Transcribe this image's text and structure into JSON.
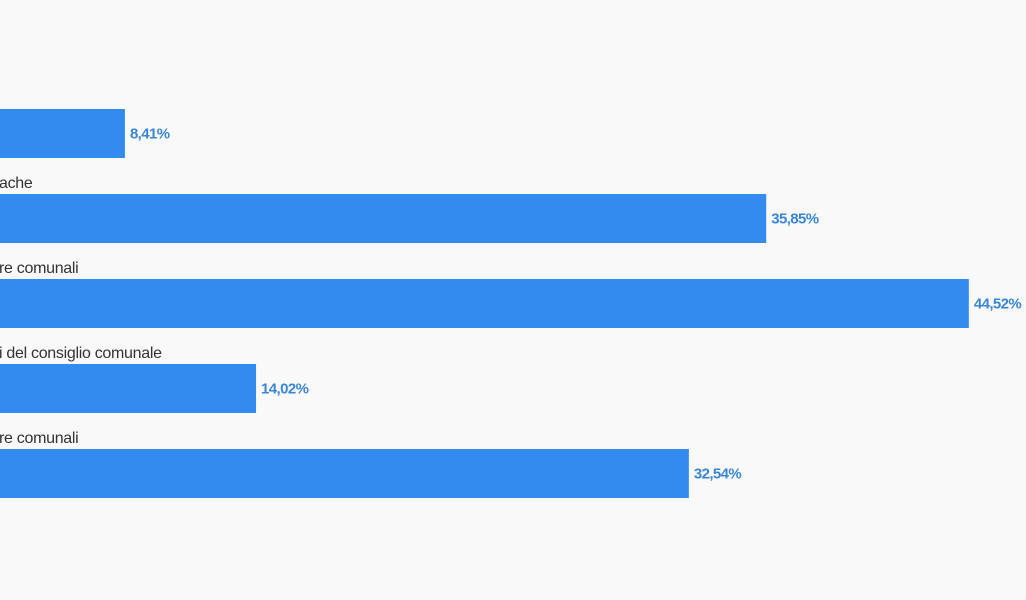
{
  "chart_data": {
    "type": "bar",
    "orientation": "horizontal",
    "color": "#338bef",
    "categories": [
      null,
      "ache",
      "re comunali",
      "i del consiglio comunale",
      "re comunali"
    ],
    "values": [
      8.41,
      35.85,
      44.52,
      14.02,
      32.54
    ],
    "value_labels": [
      "8,41%",
      "35,85%",
      "44,52%",
      "14,02%",
      "32,54%"
    ]
  }
}
